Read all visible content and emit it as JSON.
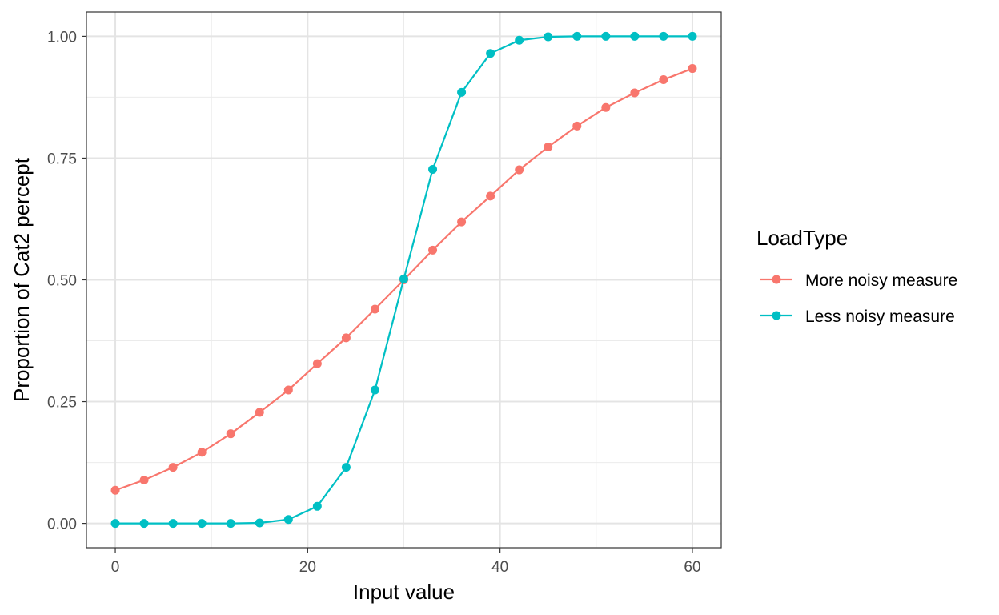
{
  "chart_data": {
    "type": "line",
    "xlabel": "Input value",
    "ylabel": "Proportion of Cat2 percept",
    "xlim": [
      -3,
      63
    ],
    "ylim": [
      -0.05,
      1.05
    ],
    "x_ticks": [
      0,
      20,
      40,
      60
    ],
    "x_tick_labels": [
      "0",
      "20",
      "40",
      "60"
    ],
    "y_ticks": [
      0,
      0.25,
      0.5,
      0.75,
      1.0
    ],
    "y_tick_labels": [
      "0.00",
      "0.25",
      "0.50",
      "0.75",
      "1.00"
    ],
    "grid": true,
    "legend": {
      "title": "LoadType",
      "placement": "right"
    },
    "x": [
      0,
      3,
      6,
      9,
      12,
      15,
      18,
      21,
      24,
      27,
      30,
      33,
      36,
      39,
      42,
      45,
      48,
      51,
      54,
      57,
      60
    ],
    "series": [
      {
        "name": "More noisy measure",
        "color": "#F8766D",
        "values": [
          0.068,
          0.089,
          0.115,
          0.146,
          0.184,
          0.228,
          0.274,
          0.328,
          0.381,
          0.44,
          0.5,
          0.561,
          0.619,
          0.672,
          0.726,
          0.773,
          0.816,
          0.854,
          0.884,
          0.911,
          0.934
        ]
      },
      {
        "name": "Less noisy measure",
        "color": "#00BFC4",
        "values": [
          0.0,
          0.0,
          0.0,
          0.0,
          0.0,
          0.001,
          0.008,
          0.035,
          0.115,
          0.274,
          0.502,
          0.727,
          0.885,
          0.965,
          0.992,
          0.999,
          1.0,
          1.0,
          1.0,
          1.0,
          1.0
        ]
      }
    ]
  }
}
